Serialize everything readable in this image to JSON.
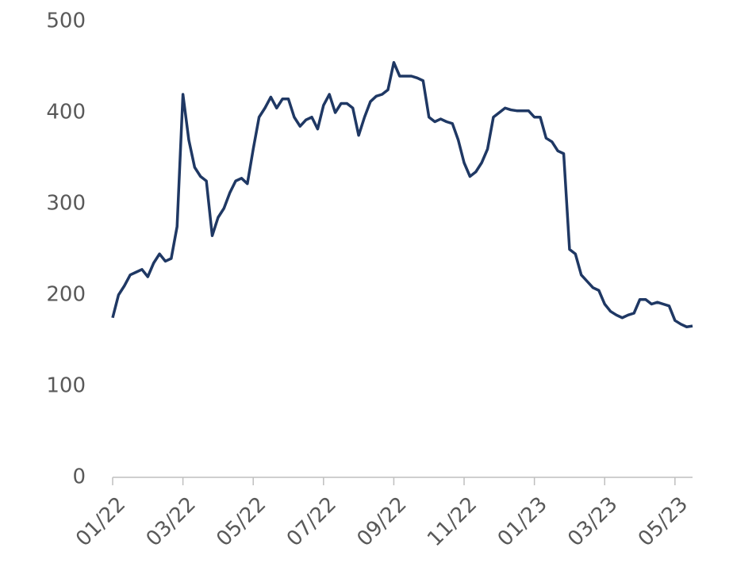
{
  "chart_data": {
    "type": "line",
    "series": [
      {
        "color": "#1f3864",
        "values": [
          175,
          200,
          210,
          222,
          225,
          228,
          220,
          235,
          245,
          237,
          240,
          275,
          420,
          370,
          340,
          330,
          325,
          265,
          285,
          295,
          312,
          325,
          328,
          322,
          360,
          395,
          405,
          417,
          405,
          415,
          415,
          395,
          385,
          392,
          395,
          382,
          408,
          420,
          400,
          410,
          410,
          405,
          375,
          395,
          412,
          418,
          420,
          425,
          455,
          440,
          440,
          440,
          438,
          435,
          395,
          390,
          393,
          390,
          388,
          370,
          345,
          330,
          335,
          345,
          360,
          395,
          400,
          405,
          403,
          402,
          402,
          402,
          395,
          395,
          372,
          368,
          358,
          355,
          250,
          245,
          222,
          215,
          208,
          205,
          190,
          182,
          178,
          175,
          178,
          180,
          195,
          195,
          190,
          192,
          190,
          188,
          172,
          168,
          165,
          166
        ]
      }
    ],
    "xlim": [
      0,
      99
    ],
    "xticks": [
      {
        "value": 0,
        "label": "01/22"
      },
      {
        "value": 12,
        "label": "03/22"
      },
      {
        "value": 24,
        "label": "05/22"
      },
      {
        "value": 36,
        "label": "07/22"
      },
      {
        "value": 48,
        "label": "09/22"
      },
      {
        "value": 60,
        "label": "11/22"
      },
      {
        "value": 72,
        "label": "01/23"
      },
      {
        "value": 84,
        "label": "03/23"
      },
      {
        "value": 96,
        "label": "05/23"
      }
    ],
    "ylim": [
      0,
      500
    ],
    "yticks": [
      0,
      100,
      200,
      300,
      400,
      500
    ],
    "grid": false
  }
}
